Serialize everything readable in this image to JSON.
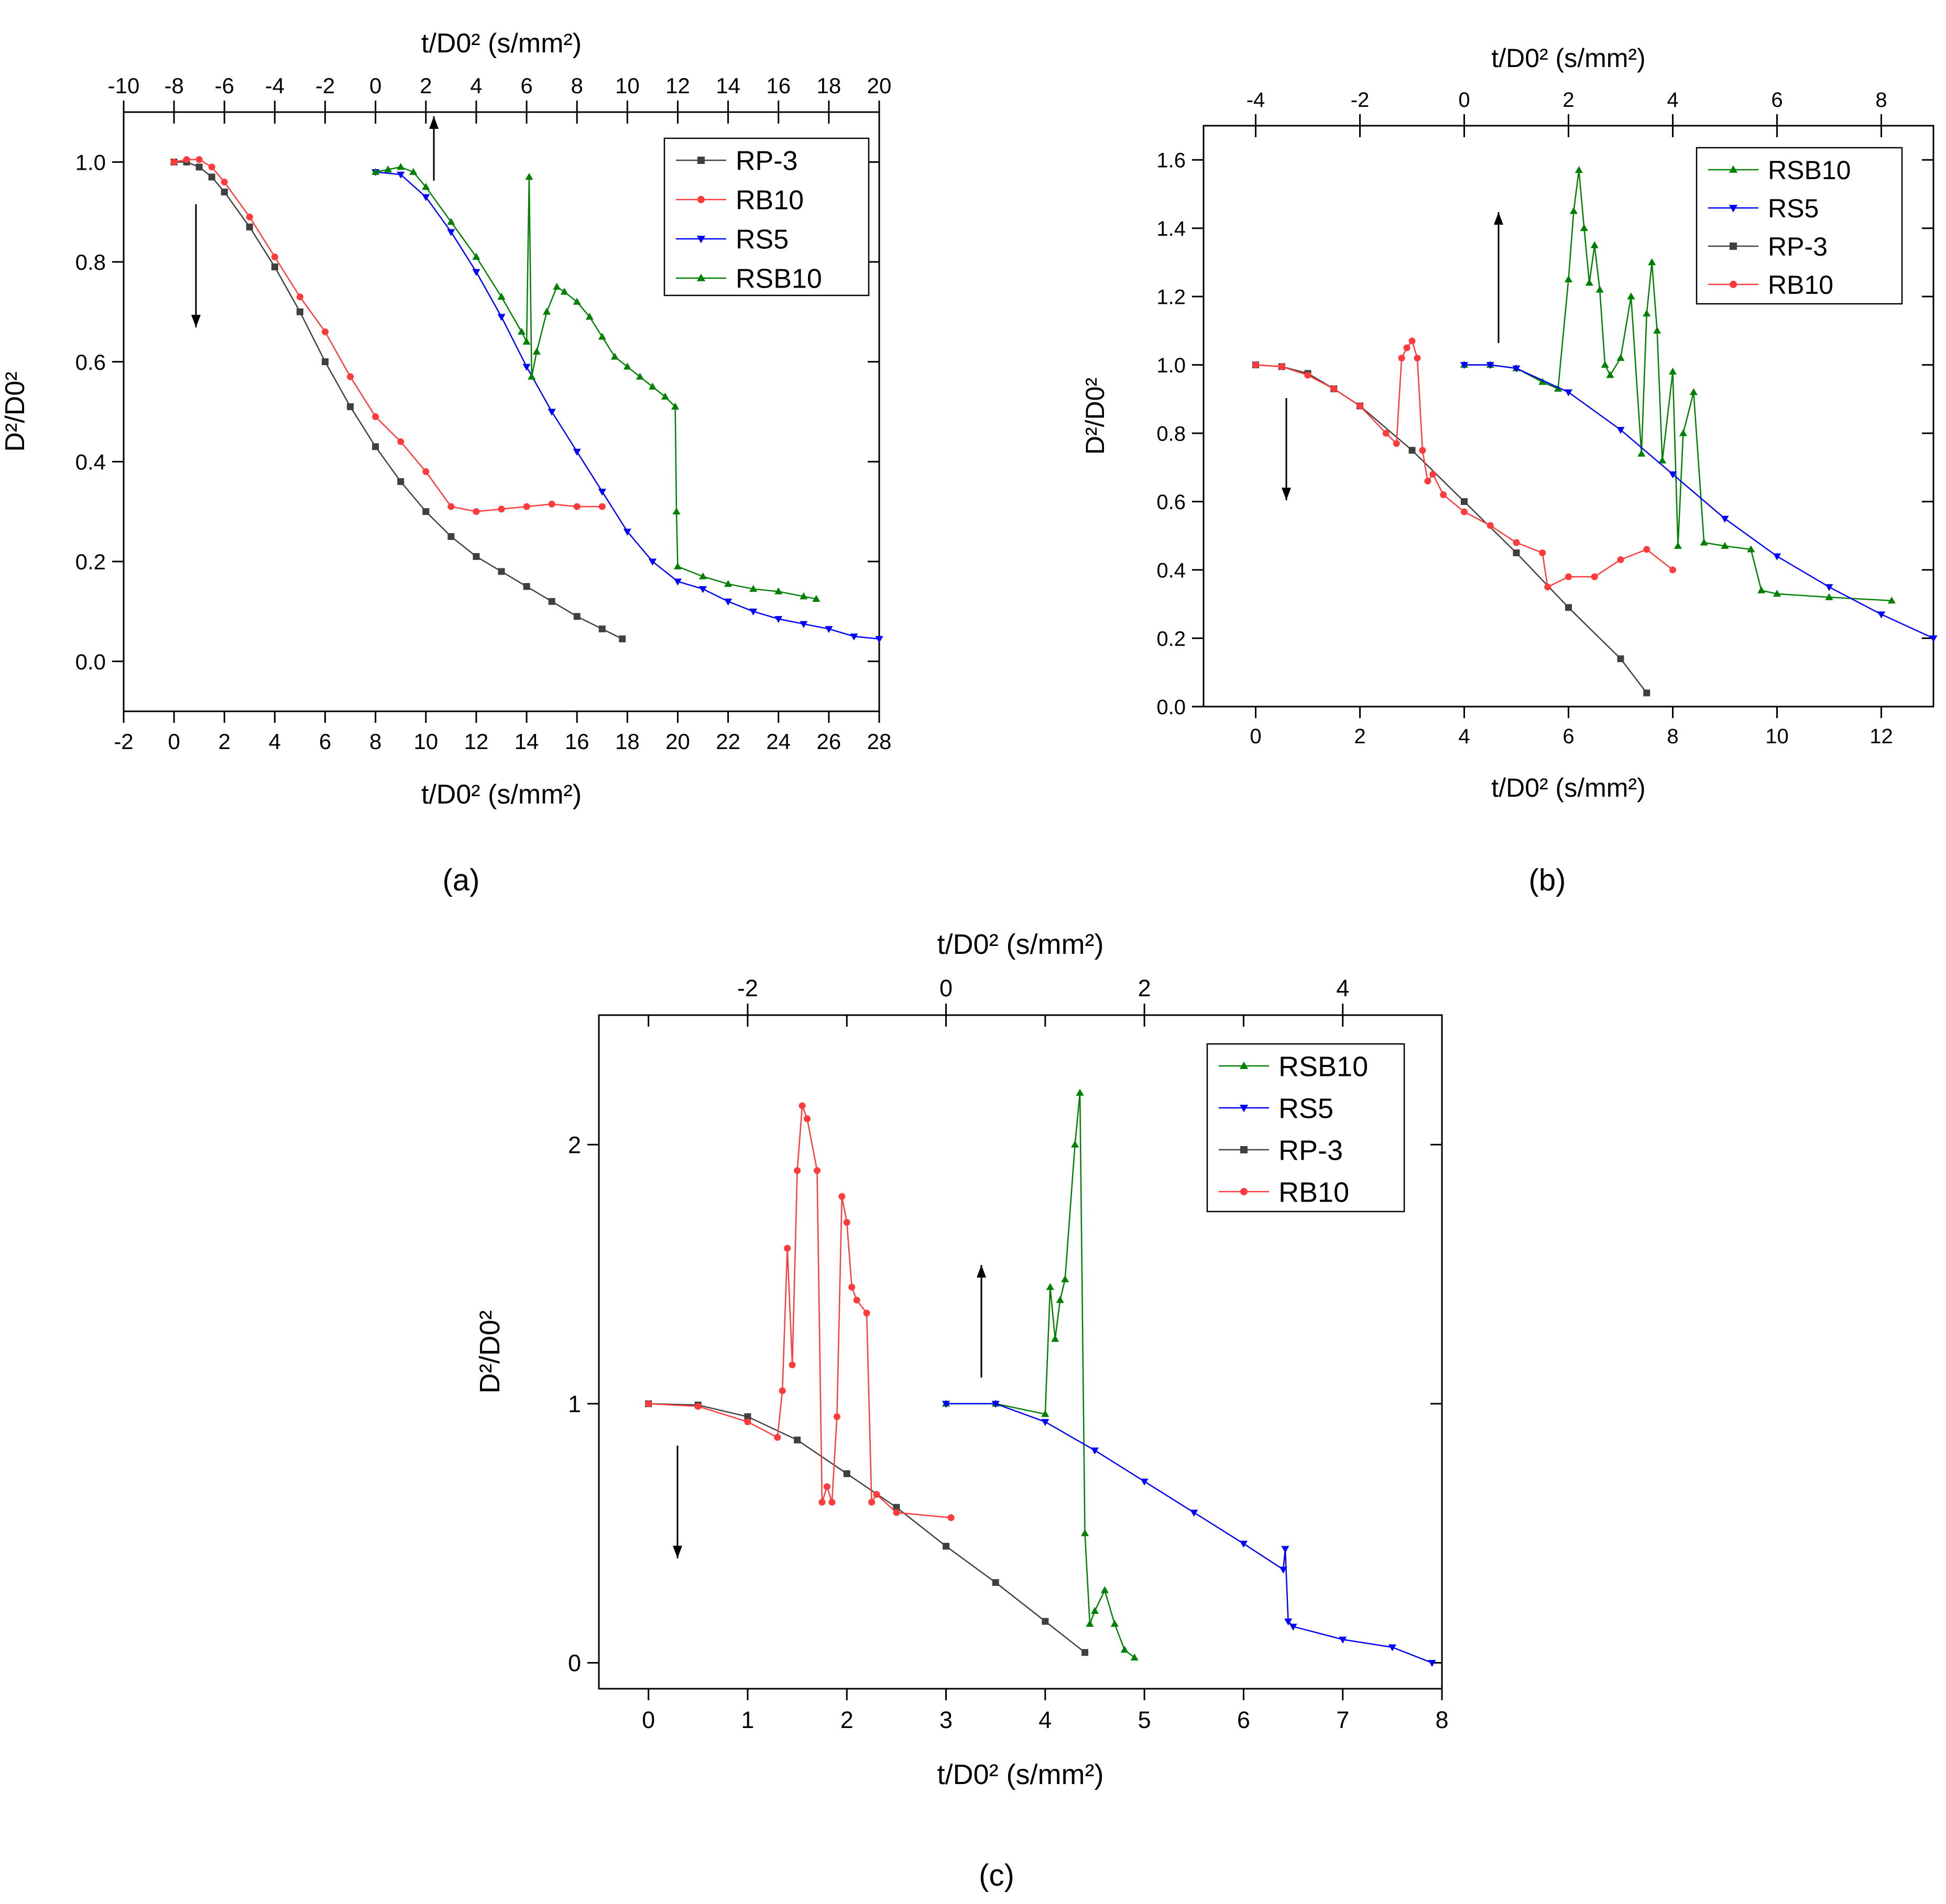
{
  "chart_data": [
    {
      "type": "line",
      "panel_label": "(a)",
      "xlabel": "t/D0² (s/mm²)",
      "xlabel_top": "t/D0² (s/mm²)",
      "ylabel": "D²/D0²",
      "xlim": [
        -2,
        28
      ],
      "ylim": [
        -0.1,
        1.1
      ],
      "xlim_top": [
        -10,
        20
      ],
      "xticks": [
        "-2",
        "0",
        "2",
        "4",
        "6",
        "8",
        "10",
        "12",
        "14",
        "16",
        "18",
        "20",
        "22",
        "24",
        "26",
        "28"
      ],
      "xticks_top": [
        "-10",
        "-8",
        "-6",
        "-4",
        "-2",
        "0",
        "2",
        "4",
        "6",
        "8",
        "10",
        "12",
        "14",
        "16",
        "18",
        "20"
      ],
      "yticks": [
        "0.0",
        "0.2",
        "0.4",
        "0.6",
        "0.8",
        "1.0"
      ],
      "legend_position": "top-right",
      "annotations": [
        "arrow-down near RP-3/RB10 start (bottom axis)",
        "arrow-up near RS5/RSB10 start (top axis)"
      ],
      "series": [
        {
          "name": "RP-3",
          "color": "#404040",
          "marker": "square",
          "axis": "bottom",
          "x": [
            0,
            0.5,
            1,
            1.5,
            2,
            3,
            4,
            5,
            6,
            7,
            8,
            9,
            10,
            11,
            12,
            13,
            14,
            15,
            16,
            17,
            17.8
          ],
          "y": [
            1.0,
            1.0,
            0.99,
            0.97,
            0.94,
            0.87,
            0.79,
            0.7,
            0.6,
            0.51,
            0.43,
            0.36,
            0.3,
            0.25,
            0.21,
            0.18,
            0.15,
            0.12,
            0.09,
            0.065,
            0.045
          ]
        },
        {
          "name": "RB10",
          "color": "#ff3b3b",
          "marker": "circle",
          "axis": "bottom",
          "x": [
            0,
            0.5,
            1,
            1.5,
            2,
            3,
            4,
            5,
            6,
            7,
            8,
            9,
            10,
            11,
            12,
            13,
            14,
            15,
            16,
            17
          ],
          "y": [
            1.0,
            1.005,
            1.005,
            0.99,
            0.96,
            0.89,
            0.81,
            0.73,
            0.66,
            0.57,
            0.49,
            0.44,
            0.38,
            0.31,
            0.3,
            0.305,
            0.31,
            0.315,
            0.31,
            0.31
          ]
        },
        {
          "name": "RS5",
          "color": "#0000ff",
          "marker": "triangle-down",
          "axis": "bottom",
          "x": [
            8,
            9,
            10,
            11,
            12,
            13,
            14,
            15,
            16,
            17,
            18,
            19,
            20,
            21,
            22,
            23,
            24,
            25,
            26,
            27,
            28
          ],
          "y": [
            0.98,
            0.975,
            0.93,
            0.86,
            0.78,
            0.69,
            0.59,
            0.5,
            0.42,
            0.34,
            0.26,
            0.2,
            0.16,
            0.145,
            0.12,
            0.1,
            0.085,
            0.075,
            0.065,
            0.05,
            0.045
          ]
        },
        {
          "name": "RSB10",
          "color": "#008000",
          "marker": "triangle-up",
          "axis": "bottom",
          "x": [
            8,
            8.5,
            9,
            9.5,
            10,
            11,
            12,
            13,
            13.8,
            14,
            14.1,
            14.2,
            14.4,
            14.8,
            15.2,
            15.5,
            16,
            16.5,
            17,
            17.5,
            18,
            18.5,
            19,
            19.5,
            19.9,
            19.95,
            20,
            21,
            22,
            23,
            24,
            25,
            25.5
          ],
          "y": [
            0.98,
            0.985,
            0.99,
            0.98,
            0.95,
            0.88,
            0.81,
            0.73,
            0.66,
            0.64,
            0.97,
            0.57,
            0.62,
            0.7,
            0.75,
            0.74,
            0.72,
            0.69,
            0.65,
            0.61,
            0.59,
            0.57,
            0.55,
            0.53,
            0.51,
            0.3,
            0.19,
            0.17,
            0.155,
            0.145,
            0.14,
            0.13,
            0.125
          ]
        }
      ]
    },
    {
      "type": "line",
      "panel_label": "(b)",
      "xlabel": "t/D0² (s/mm²)",
      "xlabel_top": "t/D0² (s/mm²)",
      "ylabel": "D²/D0²",
      "xlim": [
        -1,
        13
      ],
      "ylim": [
        0.0,
        1.7
      ],
      "xlim_top": [
        -5,
        9
      ],
      "xticks": [
        "0",
        "2",
        "4",
        "6",
        "8",
        "10",
        "12"
      ],
      "xticks_top": [
        "-4",
        "-2",
        "0",
        "2",
        "4",
        "6",
        "8"
      ],
      "yticks": [
        "0.0",
        "0.2",
        "0.4",
        "0.6",
        "0.8",
        "1.0",
        "1.2",
        "1.4",
        "1.6"
      ],
      "legend_position": "top-right",
      "annotations": [
        "arrow-down near RP-3/RB10 start (bottom axis)",
        "arrow-up near RS5/RSB10 start (top axis)"
      ],
      "series": [
        {
          "name": "RSB10",
          "color": "#008000",
          "marker": "triangle-up",
          "axis": "bottom",
          "x": [
            4,
            4.5,
            5,
            5.5,
            5.8,
            6,
            6.1,
            6.2,
            6.3,
            6.4,
            6.5,
            6.6,
            6.7,
            6.8,
            7,
            7.2,
            7.4,
            7.5,
            7.6,
            7.7,
            7.8,
            8,
            8.1,
            8.2,
            8.4,
            8.6,
            9,
            9.5,
            9.7,
            10,
            11,
            12.2
          ],
          "y": [
            1.0,
            1.0,
            0.99,
            0.95,
            0.93,
            1.25,
            1.45,
            1.57,
            1.4,
            1.24,
            1.35,
            1.22,
            1.0,
            0.97,
            1.02,
            1.2,
            0.74,
            1.15,
            1.3,
            1.1,
            0.72,
            0.98,
            0.47,
            0.8,
            0.92,
            0.48,
            0.47,
            0.46,
            0.34,
            0.33,
            0.32,
            0.31
          ]
        },
        {
          "name": "RS5",
          "color": "#0000ff",
          "marker": "triangle-down",
          "axis": "bottom",
          "x": [
            4,
            4.5,
            5,
            6,
            7,
            8,
            9,
            10,
            11,
            12,
            13
          ],
          "y": [
            1.0,
            1.0,
            0.99,
            0.92,
            0.81,
            0.68,
            0.55,
            0.44,
            0.35,
            0.27,
            0.2
          ]
        },
        {
          "name": "RP-3",
          "color": "#404040",
          "marker": "square",
          "axis": "bottom",
          "x": [
            0,
            0.5,
            1,
            1.5,
            2,
            3,
            4,
            5,
            6,
            7,
            7.5
          ],
          "y": [
            1.0,
            0.995,
            0.975,
            0.93,
            0.88,
            0.75,
            0.6,
            0.45,
            0.29,
            0.14,
            0.04
          ]
        },
        {
          "name": "RB10",
          "color": "#ff3b3b",
          "marker": "circle",
          "axis": "bottom",
          "x": [
            0,
            0.5,
            1,
            1.5,
            2,
            2.5,
            2.7,
            2.8,
            2.9,
            3.0,
            3.1,
            3.2,
            3.3,
            3.4,
            3.6,
            4,
            4.5,
            5,
            5.5,
            5.6,
            6,
            6.5,
            7,
            7.5,
            8
          ],
          "y": [
            1.0,
            0.995,
            0.97,
            0.93,
            0.88,
            0.8,
            0.77,
            1.02,
            1.05,
            1.07,
            1.02,
            0.75,
            0.66,
            0.68,
            0.62,
            0.57,
            0.53,
            0.48,
            0.45,
            0.35,
            0.38,
            0.38,
            0.43,
            0.46,
            0.4
          ]
        }
      ]
    },
    {
      "type": "line",
      "panel_label": "(c)",
      "xlabel": "t/D0² (s/mm²)",
      "xlabel_top": "t/D0² (s/mm²)",
      "ylabel": "D²/D0²",
      "xlim": [
        -0.5,
        8
      ],
      "ylim": [
        -0.1,
        2.5
      ],
      "xlim_top": [
        -3.5,
        5
      ],
      "xticks": [
        "0",
        "1",
        "2",
        "3",
        "4",
        "5",
        "6",
        "7",
        "8"
      ],
      "xticks_top": [
        "-2",
        "0",
        "2",
        "4"
      ],
      "yticks": [
        "0",
        "1",
        "2"
      ],
      "legend_position": "top-right",
      "annotations": [
        "arrow-down near RP-3/RB10 start (bottom axis)",
        "arrow-up near RS5/RSB10 start (top axis)"
      ],
      "series": [
        {
          "name": "RSB10",
          "color": "#008000",
          "marker": "triangle-up",
          "axis": "bottom",
          "x": [
            3,
            3.5,
            4,
            4.05,
            4.1,
            4.15,
            4.2,
            4.3,
            4.35,
            4.4,
            4.45,
            4.5,
            4.6,
            4.7,
            4.8,
            4.9
          ],
          "y": [
            1.0,
            1.0,
            0.96,
            1.45,
            1.25,
            1.4,
            1.48,
            2.0,
            2.2,
            0.5,
            0.15,
            0.2,
            0.28,
            0.15,
            0.05,
            0.02
          ]
        },
        {
          "name": "RS5",
          "color": "#0000ff",
          "marker": "triangle-down",
          "axis": "bottom",
          "x": [
            3,
            3.5,
            4,
            4.5,
            5,
            5.5,
            6,
            6.4,
            6.42,
            6.45,
            6.5,
            7,
            7.5,
            7.9
          ],
          "y": [
            1.0,
            1.0,
            0.93,
            0.82,
            0.7,
            0.58,
            0.46,
            0.36,
            0.44,
            0.16,
            0.14,
            0.09,
            0.06,
            0.0
          ]
        },
        {
          "name": "RP-3",
          "color": "#404040",
          "marker": "square",
          "axis": "bottom",
          "x": [
            0,
            0.5,
            1,
            1.5,
            2,
            2.5,
            3,
            3.5,
            4,
            4.4
          ],
          "y": [
            1.0,
            0.995,
            0.95,
            0.86,
            0.73,
            0.6,
            0.45,
            0.31,
            0.16,
            0.04
          ]
        },
        {
          "name": "RB10",
          "color": "#ff3b3b",
          "marker": "circle",
          "axis": "bottom",
          "x": [
            0,
            0.5,
            1,
            1.3,
            1.35,
            1.4,
            1.45,
            1.5,
            1.55,
            1.6,
            1.7,
            1.75,
            1.8,
            1.85,
            1.9,
            1.95,
            2.0,
            2.05,
            2.1,
            2.2,
            2.25,
            2.3,
            2.5,
            3.05
          ],
          "y": [
            1.0,
            0.99,
            0.93,
            0.87,
            1.05,
            1.6,
            1.15,
            1.9,
            2.15,
            2.1,
            1.9,
            0.62,
            0.68,
            0.62,
            0.95,
            1.8,
            1.7,
            1.45,
            1.4,
            1.35,
            0.62,
            0.65,
            0.58,
            0.56
          ]
        }
      ]
    }
  ]
}
